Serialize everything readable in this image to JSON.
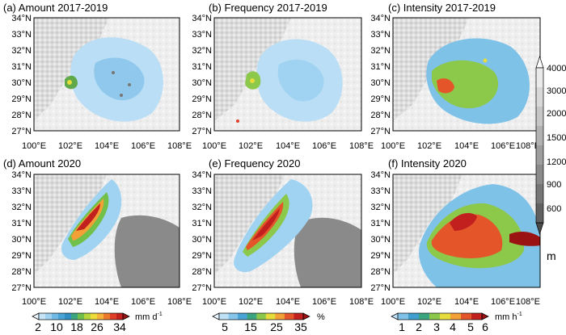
{
  "chart_data": [
    {
      "type": "heatmap",
      "title": "(a) Amount 2017-2019",
      "variable": "amount",
      "period": "2017-2019",
      "x_ticks": [
        "100°E",
        "102°E",
        "104°E",
        "106°E",
        "108°E"
      ],
      "y_ticks": [
        "34°N",
        "33°N",
        "32°N",
        "31°N",
        "30°N",
        "29°N",
        "28°N",
        "27°N"
      ],
      "xlim": [
        100,
        108
      ],
      "ylim": [
        27,
        34
      ]
    },
    {
      "type": "heatmap",
      "title": "(b) Frequency 2017-2019",
      "variable": "frequency",
      "period": "2017-2019",
      "x_ticks": [
        "100°E",
        "102°E",
        "104°E",
        "106°E",
        "108°E"
      ],
      "y_ticks": [
        "34°N",
        "33°N",
        "32°N",
        "31°N",
        "30°N",
        "29°N",
        "28°N",
        "27°N"
      ],
      "xlim": [
        100,
        108
      ],
      "ylim": [
        27,
        34
      ]
    },
    {
      "type": "heatmap",
      "title": "(c) Intensity 2017-2019",
      "variable": "intensity",
      "period": "2017-2019",
      "x_ticks": [
        "100°E",
        "102°E",
        "104°E",
        "106°E",
        "108°E"
      ],
      "y_ticks": [
        "34°N",
        "33°N",
        "32°N",
        "31°N",
        "30°N",
        "29°N",
        "28°N",
        "27°N"
      ],
      "xlim": [
        100,
        108
      ],
      "ylim": [
        27,
        34
      ]
    },
    {
      "type": "heatmap",
      "title": "(d) Amount 2020",
      "variable": "amount",
      "period": "2020",
      "x_ticks": [
        "100°E",
        "102°E",
        "104°E",
        "106°E",
        "108°E"
      ],
      "y_ticks": [
        "34°N",
        "33°N",
        "32°N",
        "31°N",
        "30°N",
        "29°N",
        "28°N",
        "27°N"
      ],
      "xlim": [
        100,
        108
      ],
      "ylim": [
        27,
        34
      ]
    },
    {
      "type": "heatmap",
      "title": "(e) Frequency 2020",
      "variable": "frequency",
      "period": "2020",
      "x_ticks": [
        "100°E",
        "102°E",
        "104°E",
        "106°E",
        "108°E"
      ],
      "y_ticks": [
        "34°N",
        "33°N",
        "32°N",
        "31°N",
        "30°N",
        "29°N",
        "28°N",
        "27°N"
      ],
      "xlim": [
        100,
        108
      ],
      "ylim": [
        27,
        34
      ]
    },
    {
      "type": "heatmap",
      "title": "(f) Intensity 2020",
      "variable": "intensity",
      "period": "2020",
      "x_ticks": [
        "100°E",
        "102°E",
        "104°E",
        "106°E",
        "108°E"
      ],
      "y_ticks": [
        "34°N",
        "33°N",
        "32°N",
        "31°N",
        "30°N",
        "29°N",
        "28°N",
        "27°N"
      ],
      "xlim": [
        100,
        108
      ],
      "ylim": [
        27,
        34
      ]
    }
  ],
  "colorbars": {
    "amount": {
      "labels": [
        "2",
        "10",
        "18",
        "26",
        "34"
      ],
      "unit": "mm d",
      "unit_sup": "-1",
      "colors": [
        "#eaf6fd",
        "#c6e6f8",
        "#9fd3f1",
        "#6fbbe5",
        "#4aa3d6",
        "#2f8fc2",
        "#3aa57e",
        "#70c04a",
        "#b6d63c",
        "#eedc3a",
        "#f6b13a",
        "#ec7a2c",
        "#de3f26",
        "#c21f1f",
        "#9b1212"
      ]
    },
    "frequency": {
      "labels": [
        "5",
        "15",
        "25",
        "35"
      ],
      "unit": "%",
      "colors": [
        "#eaf6fd",
        "#bfe2f6",
        "#86c6ea",
        "#4aa3d6",
        "#3aa57e",
        "#8cc84a",
        "#e6dc3c",
        "#f3a036",
        "#e4552a",
        "#c21f1f",
        "#9b1212"
      ]
    },
    "intensity": {
      "labels": [
        "1",
        "2",
        "3",
        "4",
        "5",
        "6"
      ],
      "unit": "mm h",
      "unit_sup": "-1",
      "colors": [
        "#bfe2f6",
        "#7fc2e8",
        "#3f9fce",
        "#3aa57e",
        "#8cc84a",
        "#e6dc3c",
        "#f3a036",
        "#e4552a",
        "#c21f1f",
        "#9b1212"
      ]
    },
    "terrain": {
      "labels": [
        "4000",
        "3000",
        "2000",
        "1500",
        "1200",
        "900",
        "600"
      ],
      "unit": "m",
      "colors": [
        "#ffffff",
        "#eaeaea",
        "#d8d8d8",
        "#c6c6c6",
        "#b2b2b2",
        "#9e9e9e",
        "#8a8a8a",
        "#767676",
        "#606060",
        "#4a4a4a"
      ]
    }
  }
}
